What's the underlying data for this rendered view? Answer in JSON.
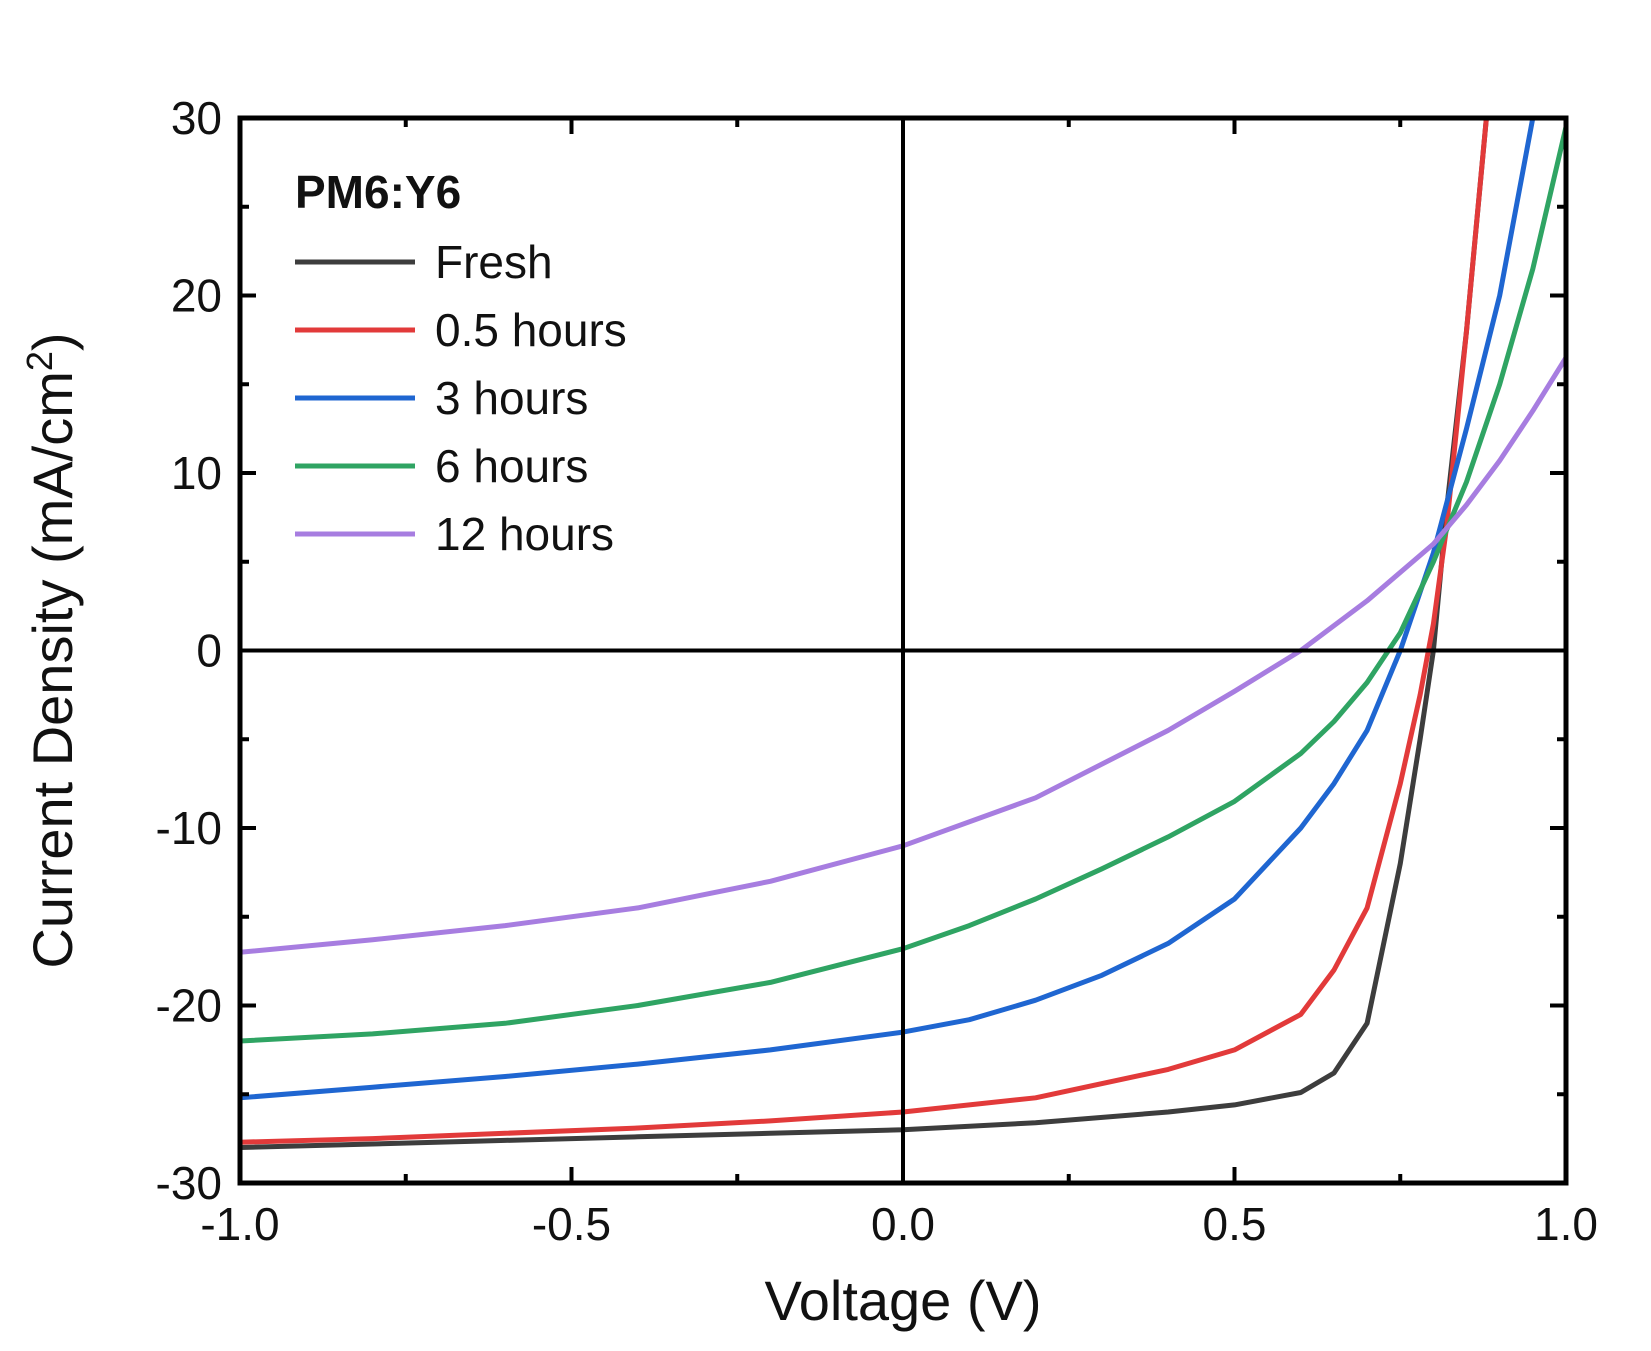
{
  "chart_data": {
    "type": "line",
    "xlabel": "Voltage (V)",
    "ylabel_main": "Current Density (mA/cm",
    "ylabel_sup": "2",
    "ylabel_close": ")",
    "xlim": [
      -1.0,
      1.0
    ],
    "ylim": [
      -30,
      30
    ],
    "x_ticks": [
      -1.0,
      -0.5,
      0.0,
      0.5,
      1.0
    ],
    "x_tick_labels": [
      "-1.0",
      "-0.5",
      "0.0",
      "0.5",
      "1.0"
    ],
    "y_ticks": [
      -30,
      -20,
      -10,
      0,
      10,
      20,
      30
    ],
    "y_tick_labels": [
      "-30",
      "-20",
      "-10",
      "0",
      "10",
      "20",
      "30"
    ],
    "zero_lines": true,
    "grid": false,
    "legend": {
      "title": "PM6:Y6",
      "placement": "top-left"
    },
    "series": [
      {
        "name": "Fresh",
        "color": "#3d3d3d",
        "x": [
          -1.0,
          -0.8,
          -0.6,
          -0.4,
          -0.2,
          0.0,
          0.2,
          0.4,
          0.5,
          0.6,
          0.65,
          0.7,
          0.75,
          0.78,
          0.8,
          0.82,
          0.85,
          0.88
        ],
        "y": [
          -28.0,
          -27.8,
          -27.6,
          -27.4,
          -27.2,
          -27.0,
          -26.6,
          -26.0,
          -25.6,
          -24.9,
          -23.8,
          -21.0,
          -12.0,
          -5.0,
          0.0,
          8.0,
          18.0,
          30.0
        ]
      },
      {
        "name": "0.5 hours",
        "color": "#e23a3a",
        "x": [
          -1.0,
          -0.8,
          -0.6,
          -0.4,
          -0.2,
          0.0,
          0.2,
          0.4,
          0.5,
          0.6,
          0.65,
          0.7,
          0.75,
          0.78,
          0.8,
          0.82,
          0.85,
          0.88
        ],
        "y": [
          -27.7,
          -27.5,
          -27.2,
          -26.9,
          -26.5,
          -26.0,
          -25.2,
          -23.6,
          -22.5,
          -20.5,
          -18.0,
          -14.5,
          -7.5,
          -2.5,
          1.5,
          7.0,
          18.0,
          30.0
        ]
      },
      {
        "name": "3 hours",
        "color": "#1f66d1",
        "x": [
          -1.0,
          -0.8,
          -0.6,
          -0.4,
          -0.2,
          0.0,
          0.1,
          0.2,
          0.3,
          0.4,
          0.5,
          0.6,
          0.65,
          0.7,
          0.75,
          0.8,
          0.85,
          0.9,
          0.95
        ],
        "y": [
          -25.2,
          -24.6,
          -24.0,
          -23.3,
          -22.5,
          -21.5,
          -20.8,
          -19.7,
          -18.3,
          -16.5,
          -14.0,
          -10.0,
          -7.5,
          -4.5,
          0.0,
          5.5,
          12.5,
          20.0,
          30.0
        ]
      },
      {
        "name": "6 hours",
        "color": "#2fa463",
        "x": [
          -1.0,
          -0.8,
          -0.6,
          -0.4,
          -0.2,
          0.0,
          0.1,
          0.2,
          0.3,
          0.4,
          0.5,
          0.6,
          0.65,
          0.7,
          0.75,
          0.8,
          0.85,
          0.9,
          0.95,
          1.0
        ],
        "y": [
          -22.0,
          -21.6,
          -21.0,
          -20.0,
          -18.7,
          -16.8,
          -15.5,
          -14.0,
          -12.3,
          -10.5,
          -8.5,
          -5.8,
          -4.0,
          -1.8,
          1.0,
          5.0,
          9.5,
          15.0,
          21.5,
          29.5
        ]
      },
      {
        "name": "12 hours",
        "color": "#a77de0",
        "x": [
          -1.0,
          -0.8,
          -0.6,
          -0.4,
          -0.2,
          0.0,
          0.2,
          0.4,
          0.5,
          0.6,
          0.7,
          0.8,
          0.85,
          0.9,
          0.95,
          1.0
        ],
        "y": [
          -17.0,
          -16.3,
          -15.5,
          -14.5,
          -13.0,
          -11.0,
          -8.3,
          -4.5,
          -2.3,
          0.0,
          2.8,
          6.0,
          8.2,
          10.7,
          13.5,
          16.5
        ]
      }
    ]
  }
}
